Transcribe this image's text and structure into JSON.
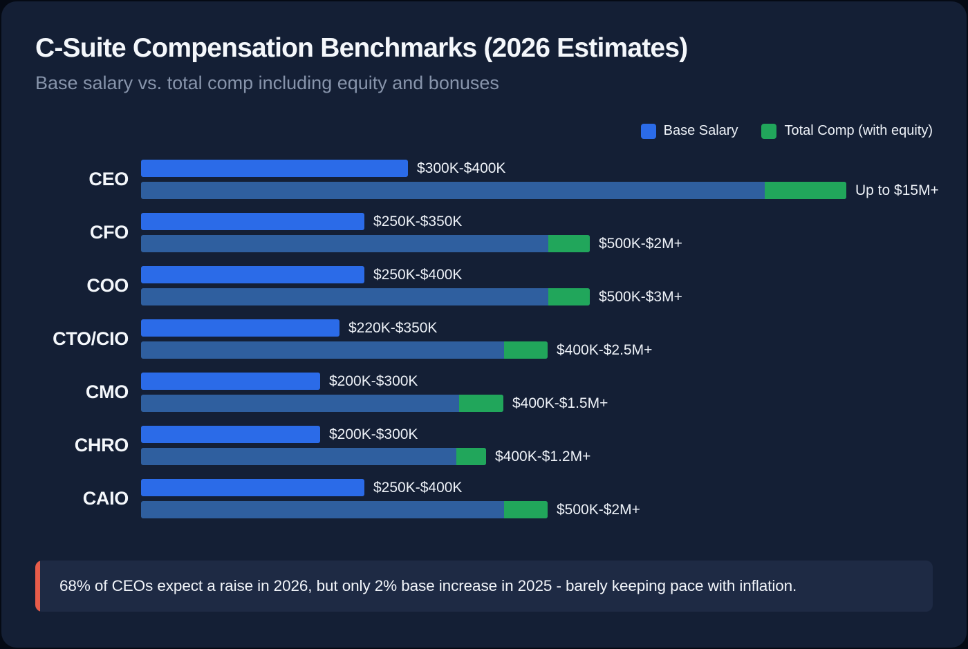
{
  "page": {
    "title": "C-Suite Compensation Benchmarks (2026 Estimates)",
    "subtitle": "Base salary vs. total comp including equity and bonuses"
  },
  "legend": {
    "base_label": "Base Salary",
    "total_label": "Total Comp (with equity)"
  },
  "colors": {
    "base_bar": "#2b6be8",
    "total_bar": "#2f5f9f",
    "equity_segment": "#21a65b",
    "callout_accent": "#e85c4a"
  },
  "chart_data": {
    "type": "bar",
    "orientation": "horizontal",
    "title": "C-Suite Compensation Benchmarks (2026 Estimates)",
    "subtitle": "Base salary vs. total comp including equity and bonuses",
    "legend": [
      "Base Salary",
      "Total Comp (with equity)"
    ],
    "legend_position": "top-right",
    "grid": false,
    "bar_width_note": "widths are pixel lengths proportional to compensation magnitude; equity_width is the green tip portion of the total bar",
    "rows": [
      {
        "role": "CEO",
        "base_label": "$300K-$400K",
        "total_label": "Up to $15M+",
        "base_width": 386,
        "total_width": 1020,
        "equity_width": 118
      },
      {
        "role": "CFO",
        "base_label": "$250K-$350K",
        "total_label": "$500K-$2M+",
        "base_width": 323,
        "total_width": 649,
        "equity_width": 60
      },
      {
        "role": "COO",
        "base_label": "$250K-$400K",
        "total_label": "$500K-$3M+",
        "base_width": 323,
        "total_width": 649,
        "equity_width": 60
      },
      {
        "role": "CTO/CIO",
        "base_label": "$220K-$350K",
        "total_label": "$400K-$2.5M+",
        "base_width": 287,
        "total_width": 588,
        "equity_width": 63
      },
      {
        "role": "CMO",
        "base_label": "$200K-$300K",
        "total_label": "$400K-$1.5M+",
        "base_width": 259,
        "total_width": 524,
        "equity_width": 64
      },
      {
        "role": "CHRO",
        "base_label": "$200K-$300K",
        "total_label": "$400K-$1.2M+",
        "base_width": 259,
        "total_width": 499,
        "equity_width": 43
      },
      {
        "role": "CAIO",
        "base_label": "$250K-$400K",
        "total_label": "$500K-$2M+",
        "base_width": 323,
        "total_width": 588,
        "equity_width": 63
      }
    ]
  },
  "callout": {
    "text": "68% of CEOs expect a raise in 2026, but only 2% base increase in 2025 - barely keeping pace with inflation."
  }
}
